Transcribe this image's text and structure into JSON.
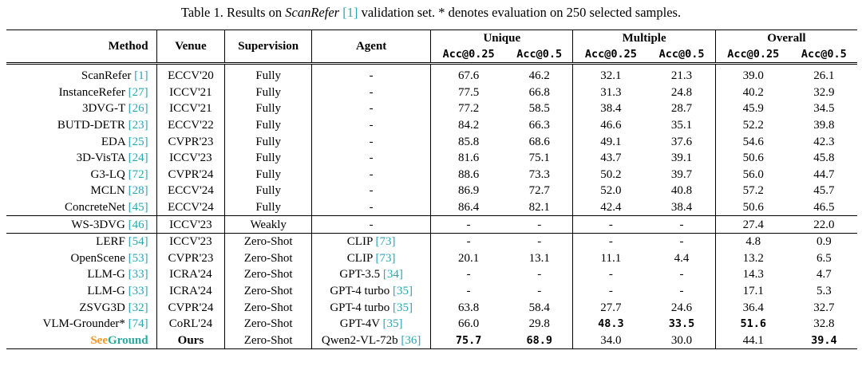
{
  "caption": {
    "prefix": "Table 1. Results on ",
    "dataset": "ScanRefer",
    "cite": "[1]",
    "suffix": " validation set. * denotes evaluation on 250 selected samples."
  },
  "headers": {
    "method": "Method",
    "venue": "Venue",
    "supervision": "Supervision",
    "agent": "Agent",
    "groups": [
      "Unique",
      "Multiple",
      "Overall"
    ],
    "metrics": [
      "Acc@0.25",
      "Acc@0.5",
      "Acc@0.25",
      "Acc@0.5",
      "Acc@0.25",
      "Acc@0.5"
    ]
  },
  "sections": [
    {
      "rows": [
        {
          "method": "ScanRefer",
          "cite": "[1]",
          "venue": "ECCV'20",
          "sup": "Fully",
          "agent": "-",
          "agent_cite": "",
          "v": [
            "67.6",
            "46.2",
            "32.1",
            "21.3",
            "39.0",
            "26.1"
          ]
        },
        {
          "method": "InstanceRefer",
          "cite": "[27]",
          "venue": "ICCV'21",
          "sup": "Fully",
          "agent": "-",
          "agent_cite": "",
          "v": [
            "77.5",
            "66.8",
            "31.3",
            "24.8",
            "40.2",
            "32.9"
          ]
        },
        {
          "method": "3DVG-T",
          "cite": "[26]",
          "venue": "ICCV'21",
          "sup": "Fully",
          "agent": "-",
          "agent_cite": "",
          "v": [
            "77.2",
            "58.5",
            "38.4",
            "28.7",
            "45.9",
            "34.5"
          ]
        },
        {
          "method": "BUTD-DETR",
          "cite": "[23]",
          "venue": "ECCV'22",
          "sup": "Fully",
          "agent": "-",
          "agent_cite": "",
          "v": [
            "84.2",
            "66.3",
            "46.6",
            "35.1",
            "52.2",
            "39.8"
          ]
        },
        {
          "method": "EDA",
          "cite": "[25]",
          "venue": "CVPR'23",
          "sup": "Fully",
          "agent": "-",
          "agent_cite": "",
          "v": [
            "85.8",
            "68.6",
            "49.1",
            "37.6",
            "54.6",
            "42.3"
          ]
        },
        {
          "method": "3D-VisTA",
          "cite": "[24]",
          "venue": "ICCV'23",
          "sup": "Fully",
          "agent": "-",
          "agent_cite": "",
          "v": [
            "81.6",
            "75.1",
            "43.7",
            "39.1",
            "50.6",
            "45.8"
          ]
        },
        {
          "method": "G3-LQ",
          "cite": "[72]",
          "venue": "CVPR'24",
          "sup": "Fully",
          "agent": "-",
          "agent_cite": "",
          "v": [
            "88.6",
            "73.3",
            "50.2",
            "39.7",
            "56.0",
            "44.7"
          ]
        },
        {
          "method": "MCLN",
          "cite": "[28]",
          "venue": "ECCV'24",
          "sup": "Fully",
          "agent": "-",
          "agent_cite": "",
          "v": [
            "86.9",
            "72.7",
            "52.0",
            "40.8",
            "57.2",
            "45.7"
          ]
        },
        {
          "method": "ConcreteNet",
          "cite": "[45]",
          "venue": "ECCV'24",
          "sup": "Fully",
          "agent": "-",
          "agent_cite": "",
          "v": [
            "86.4",
            "82.1",
            "42.4",
            "38.4",
            "50.6",
            "46.5"
          ]
        }
      ]
    },
    {
      "rows": [
        {
          "method": "WS-3DVG",
          "cite": "[46]",
          "venue": "ICCV'23",
          "sup": "Weakly",
          "agent": "-",
          "agent_cite": "",
          "v": [
            "-",
            "-",
            "-",
            "-",
            "27.4",
            "22.0"
          ]
        }
      ]
    },
    {
      "rows": [
        {
          "method": "LERF",
          "cite": "[54]",
          "venue": "ICCV'23",
          "sup": "Zero-Shot",
          "agent": "CLIP",
          "agent_cite": "[73]",
          "v": [
            "-",
            "-",
            "-",
            "-",
            "4.8",
            "0.9"
          ]
        },
        {
          "method": "OpenScene",
          "cite": "[53]",
          "venue": "CVPR'23",
          "sup": "Zero-Shot",
          "agent": "CLIP",
          "agent_cite": "[73]",
          "v": [
            "20.1",
            "13.1",
            "11.1",
            "4.4",
            "13.2",
            "6.5"
          ]
        },
        {
          "method": "LLM-G",
          "cite": "[33]",
          "venue": "ICRA'24",
          "sup": "Zero-Shot",
          "agent": "GPT-3.5",
          "agent_cite": "[34]",
          "v": [
            "-",
            "-",
            "-",
            "-",
            "14.3",
            "4.7"
          ]
        },
        {
          "method": "LLM-G",
          "cite": "[33]",
          "venue": "ICRA'24",
          "sup": "Zero-Shot",
          "agent": "GPT-4 turbo",
          "agent_cite": "[35]",
          "v": [
            "-",
            "-",
            "-",
            "-",
            "17.1",
            "5.3"
          ]
        },
        {
          "method": "ZSVG3D",
          "cite": "[32]",
          "venue": "CVPR'24",
          "sup": "Zero-Shot",
          "agent": "GPT-4 turbo",
          "agent_cite": "[35]",
          "v": [
            "63.8",
            "58.4",
            "27.7",
            "24.6",
            "36.4",
            "32.7"
          ]
        },
        {
          "method": "VLM-Grounder*",
          "cite": "[74]",
          "venue": "CoRL'24",
          "sup": "Zero-Shot",
          "agent": "GPT-4V",
          "agent_cite": "[35]",
          "v": [
            "66.0",
            "29.8",
            "48.3",
            "33.5",
            "51.6",
            "32.8"
          ],
          "bold": [
            2,
            3,
            4
          ]
        },
        {
          "method_see": "See",
          "method_ground": "Ground",
          "venue": "Ours",
          "venue_bold": true,
          "sup": "Zero-Shot",
          "agent": "Qwen2-VL-72b",
          "agent_cite": "[36]",
          "v": [
            "75.7",
            "68.9",
            "34.0",
            "30.0",
            "44.1",
            "39.4"
          ],
          "bold": [
            0,
            1,
            5
          ],
          "ours": true
        }
      ]
    }
  ]
}
